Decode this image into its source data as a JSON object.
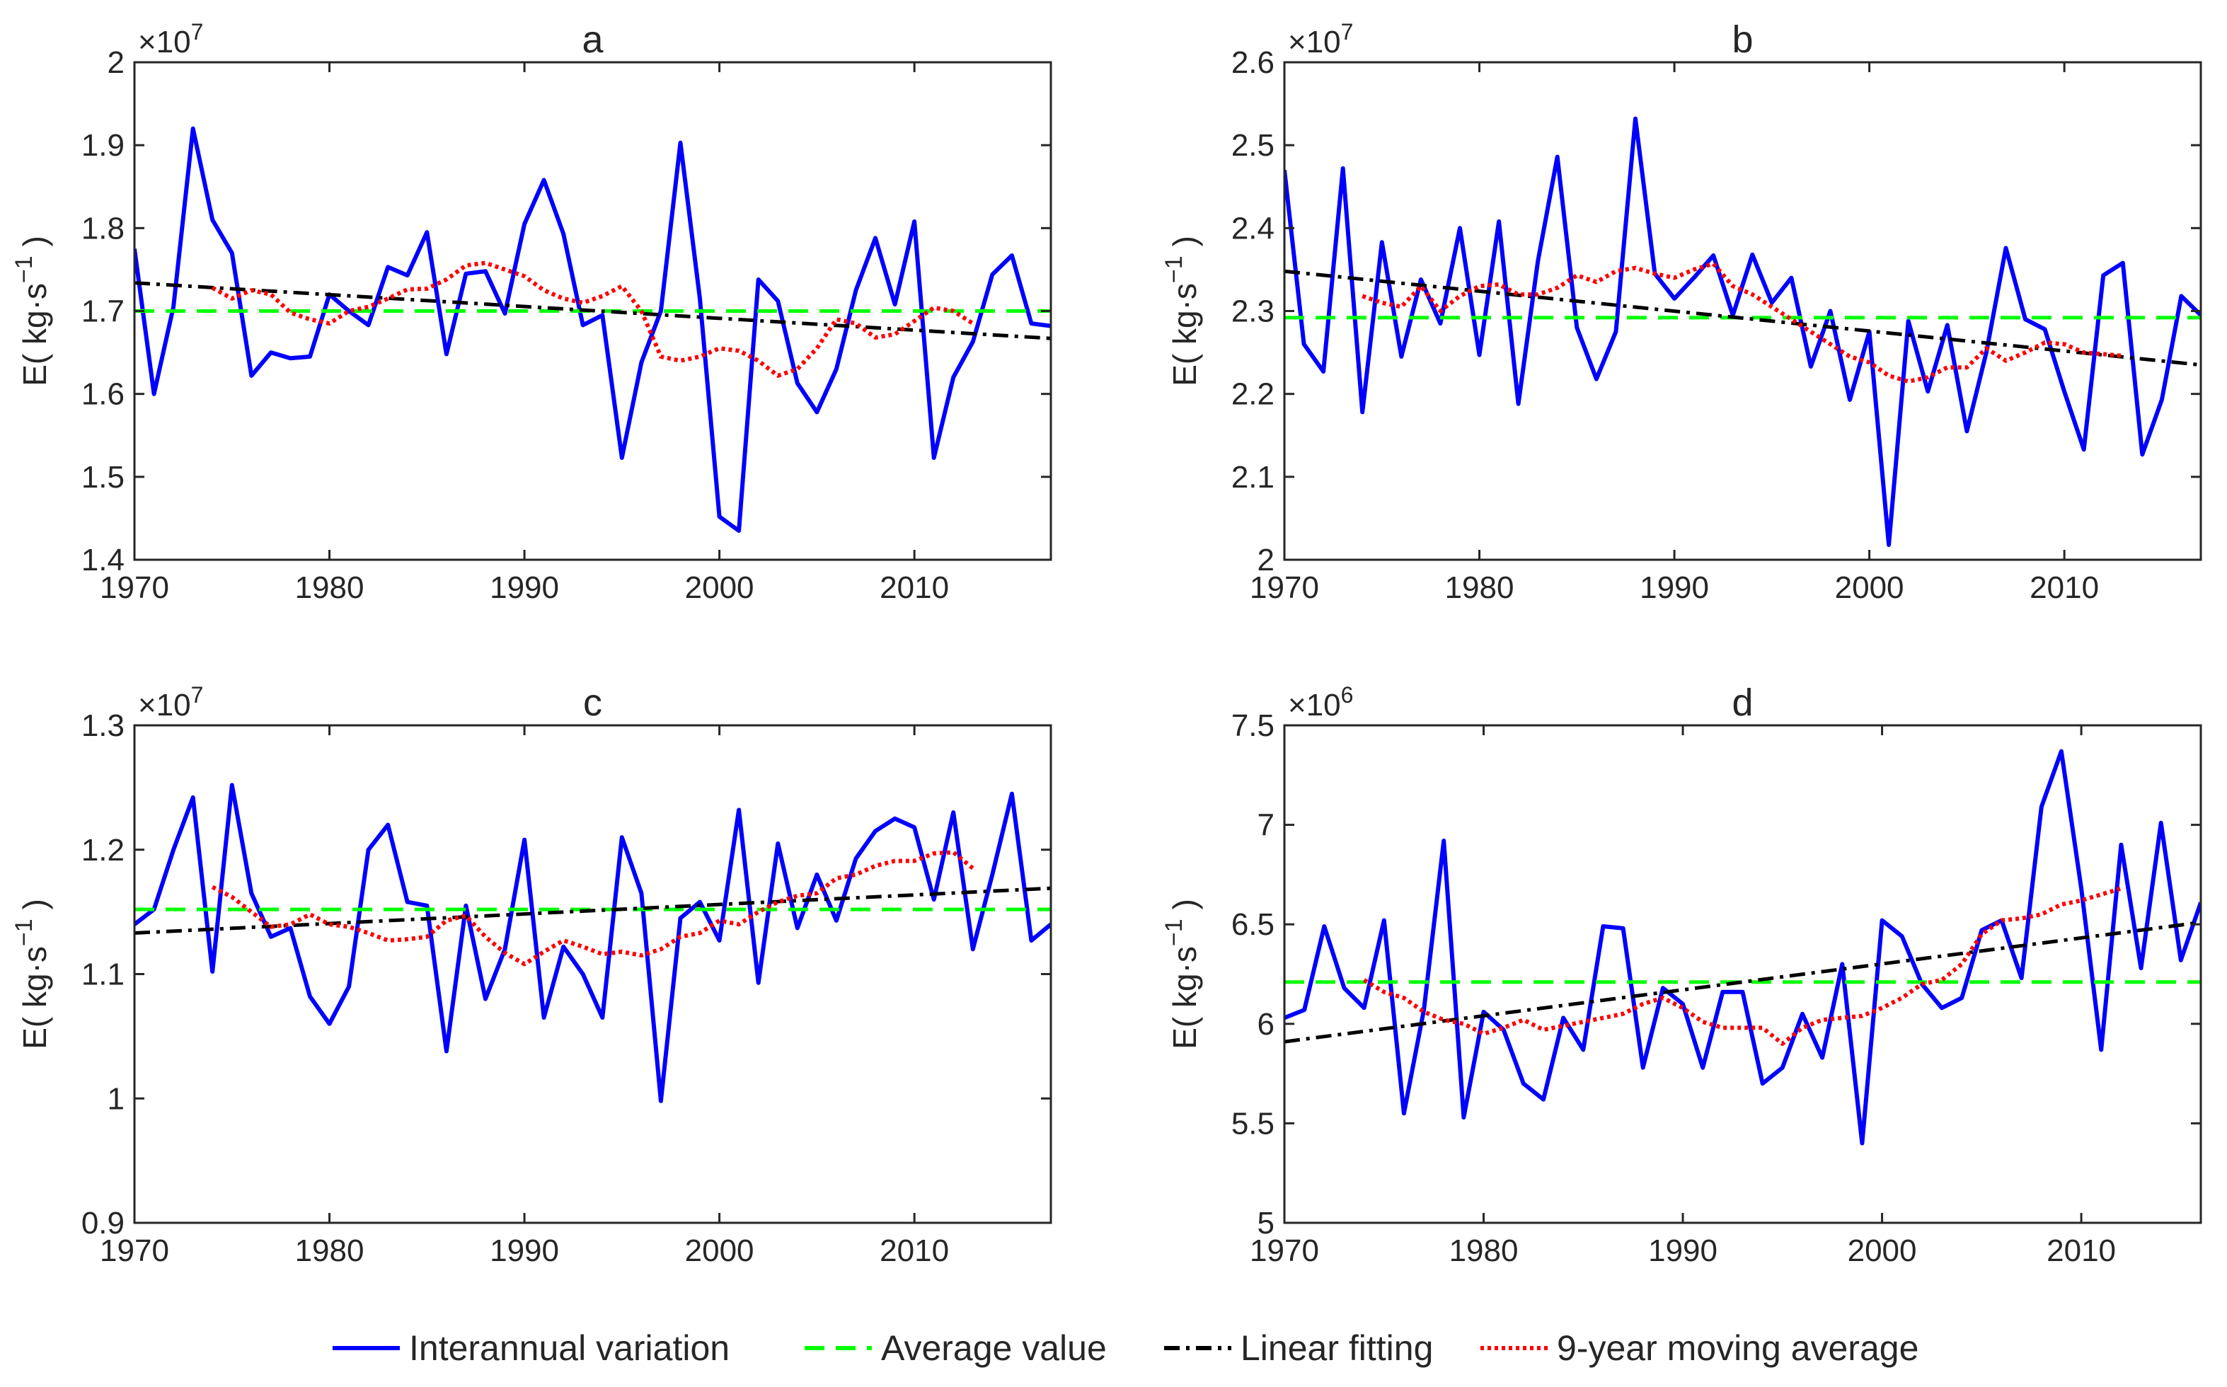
{
  "legend": {
    "interannual": "Interannual variation",
    "average": "Average value",
    "linear": "Linear fitting",
    "moving": "9-year moving average"
  },
  "colors": {
    "interannual": "#0000ff",
    "average": "#00ff00",
    "linear": "#000000",
    "moving": "#ff0000"
  },
  "chart_data": [
    {
      "type": "line",
      "title": "a",
      "exponent_label": "×10",
      "exponent_power": "7",
      "ylabel_prefix": "E( kg·s",
      "ylabel_sup": "−1",
      "ylabel_suffix": " )",
      "xlim": [
        1970,
        2017
      ],
      "ylim": [
        1.4,
        2.0
      ],
      "xticks": [
        1970,
        1980,
        1990,
        2000,
        2010
      ],
      "yticks": [
        1.4,
        1.5,
        1.6,
        1.7,
        1.8,
        1.9,
        2.0
      ],
      "ytick_labels": [
        "1.4",
        "1.5",
        "1.6",
        "1.7",
        "1.8",
        "1.9",
        "2"
      ],
      "years": [
        1970,
        1971,
        1972,
        1973,
        1974,
        1975,
        1976,
        1977,
        1978,
        1979,
        1980,
        1981,
        1982,
        1983,
        1984,
        1985,
        1986,
        1987,
        1988,
        1989,
        1990,
        1991,
        1992,
        1993,
        1994,
        1995,
        1996,
        1997,
        1998,
        1999,
        2000,
        2001,
        2002,
        2003,
        2004,
        2005,
        2006,
        2007,
        2008,
        2009,
        2010,
        2011,
        2012,
        2013,
        2014,
        2015,
        2016,
        2017
      ],
      "series": [
        {
          "name": "Interannual variation",
          "values": [
            1.775,
            1.6,
            1.705,
            1.92,
            1.81,
            1.77,
            1.622,
            1.65,
            1.643,
            1.645,
            1.72,
            1.7,
            1.683,
            1.753,
            1.743,
            1.795,
            1.648,
            1.745,
            1.748,
            1.697,
            1.805,
            1.858,
            1.793,
            1.683,
            1.695,
            1.523,
            1.638,
            1.7,
            1.903,
            1.715,
            1.452,
            1.435,
            1.738,
            1.712,
            1.613,
            1.578,
            1.63,
            1.725,
            1.788,
            1.708,
            1.808,
            1.523,
            1.62,
            1.663,
            1.744,
            1.767,
            1.685,
            1.682
          ]
        },
        {
          "name": "Average value",
          "values": [
            1.7,
            1.7
          ]
        },
        {
          "name": "Linear fitting",
          "values": [
            1.734,
            1.667
          ]
        },
        {
          "name": "9-year moving average",
          "x": [
            1974,
            1975,
            1976,
            1977,
            1978,
            1979,
            1980,
            1981,
            1982,
            1983,
            1984,
            1985,
            1986,
            1987,
            1988,
            1989,
            1990,
            1991,
            1992,
            1993,
            1994,
            1995,
            1996,
            1997,
            1998,
            1999,
            2000,
            2001,
            2002,
            2003,
            2004,
            2005,
            2006,
            2007,
            2008,
            2009,
            2010,
            2011,
            2012,
            2013
          ],
          "values": [
            1.728,
            1.715,
            1.725,
            1.72,
            1.698,
            1.69,
            1.685,
            1.7,
            1.705,
            1.715,
            1.726,
            1.727,
            1.738,
            1.755,
            1.758,
            1.75,
            1.742,
            1.725,
            1.715,
            1.71,
            1.718,
            1.73,
            1.7,
            1.645,
            1.64,
            1.645,
            1.655,
            1.652,
            1.64,
            1.622,
            1.63,
            1.655,
            1.69,
            1.685,
            1.668,
            1.672,
            1.688,
            1.704,
            1.7,
            1.685
          ]
        }
      ]
    },
    {
      "type": "line",
      "title": "b",
      "exponent_label": "×10",
      "exponent_power": "7",
      "ylabel_prefix": "E( kg·s",
      "ylabel_sup": "−1",
      "ylabel_suffix": " )",
      "xlim": [
        1970,
        2017
      ],
      "ylim": [
        2.0,
        2.6
      ],
      "xticks": [
        1970,
        1980,
        1990,
        2000,
        2010
      ],
      "yticks": [
        2.0,
        2.1,
        2.2,
        2.3,
        2.4,
        2.5,
        2.6
      ],
      "ytick_labels": [
        "2",
        "2.1",
        "2.2",
        "2.3",
        "2.4",
        "2.5",
        "2.6"
      ],
      "years": [
        1970,
        1971,
        1972,
        1973,
        1974,
        1975,
        1976,
        1977,
        1978,
        1979,
        1980,
        1981,
        1982,
        1983,
        1984,
        1985,
        1986,
        1987,
        1988,
        1989,
        1990,
        1991,
        1992,
        1993,
        1994,
        1995,
        1996,
        1997,
        1998,
        1999,
        2000,
        2001,
        2002,
        2003,
        2004,
        2005,
        2006,
        2007,
        2008,
        2009,
        2010,
        2011,
        2012,
        2013,
        2014,
        2015,
        2016,
        2017
      ],
      "series": [
        {
          "name": "Interannual variation",
          "values": [
            2.47,
            2.26,
            2.227,
            2.472,
            2.178,
            2.383,
            2.245,
            2.338,
            2.285,
            2.4,
            2.247,
            2.408,
            2.188,
            2.36,
            2.486,
            2.28,
            2.218,
            2.275,
            2.532,
            2.345,
            2.315,
            2.34,
            2.367,
            2.295,
            2.368,
            2.31,
            2.34,
            2.233,
            2.3,
            2.193,
            2.275,
            2.018,
            2.288,
            2.203,
            2.283,
            2.155,
            2.25,
            2.376,
            2.29,
            2.278,
            2.203,
            2.133,
            2.343,
            2.358,
            2.127,
            2.193,
            2.318,
            2.295
          ]
        },
        {
          "name": "Average value",
          "values": [
            2.292,
            2.292
          ]
        },
        {
          "name": "Linear fitting",
          "values": [
            2.348,
            2.235
          ]
        },
        {
          "name": "9-year moving average",
          "x": [
            1974,
            1975,
            1976,
            1977,
            1978,
            1979,
            1980,
            1981,
            1982,
            1983,
            1984,
            1985,
            1986,
            1987,
            1988,
            1989,
            1990,
            1991,
            1992,
            1993,
            1994,
            1995,
            1996,
            1997,
            1998,
            1999,
            2000,
            2001,
            2002,
            2003,
            2004,
            2005,
            2006,
            2007,
            2008,
            2009,
            2010,
            2011,
            2012,
            2013
          ],
          "values": [
            2.318,
            2.31,
            2.305,
            2.33,
            2.3,
            2.318,
            2.33,
            2.332,
            2.32,
            2.32,
            2.328,
            2.343,
            2.335,
            2.348,
            2.352,
            2.345,
            2.34,
            2.35,
            2.357,
            2.33,
            2.32,
            2.305,
            2.29,
            2.275,
            2.26,
            2.245,
            2.238,
            2.222,
            2.215,
            2.22,
            2.232,
            2.232,
            2.255,
            2.24,
            2.25,
            2.262,
            2.26,
            2.25,
            2.248,
            2.246
          ]
        }
      ]
    },
    {
      "type": "line",
      "title": "c",
      "exponent_label": "×10",
      "exponent_power": "7",
      "ylabel_prefix": "E( kg·s",
      "ylabel_sup": "−1",
      "ylabel_suffix": " )",
      "xlim": [
        1970,
        2017
      ],
      "ylim": [
        0.9,
        1.3
      ],
      "xticks": [
        1970,
        1980,
        1990,
        2000,
        2010
      ],
      "yticks": [
        0.9,
        1.0,
        1.1,
        1.2,
        1.3
      ],
      "ytick_labels": [
        "0.9",
        "1",
        "1.1",
        "1.2",
        "1.3"
      ],
      "years": [
        1970,
        1971,
        1972,
        1973,
        1974,
        1975,
        1976,
        1977,
        1978,
        1979,
        1980,
        1981,
        1982,
        1983,
        1984,
        1985,
        1986,
        1987,
        1988,
        1989,
        1990,
        1991,
        1992,
        1993,
        1994,
        1995,
        1996,
        1997,
        1998,
        1999,
        2000,
        2001,
        2002,
        2003,
        2004,
        2005,
        2006,
        2007,
        2008,
        2009,
        2010,
        2011,
        2012,
        2013,
        2014,
        2015,
        2016,
        2017
      ],
      "series": [
        {
          "name": "Interannual variation",
          "values": [
            1.14,
            1.152,
            1.2,
            1.242,
            1.102,
            1.252,
            1.165,
            1.13,
            1.137,
            1.082,
            1.06,
            1.09,
            1.2,
            1.22,
            1.158,
            1.155,
            1.038,
            1.155,
            1.08,
            1.12,
            1.208,
            1.065,
            1.122,
            1.1,
            1.065,
            1.21,
            1.165,
            0.998,
            1.145,
            1.158,
            1.127,
            1.232,
            1.093,
            1.205,
            1.137,
            1.18,
            1.143,
            1.193,
            1.215,
            1.225,
            1.218,
            1.16,
            1.23,
            1.12,
            1.18,
            1.245,
            1.127,
            1.14
          ]
        },
        {
          "name": "Average value",
          "values": [
            1.152,
            1.152
          ]
        },
        {
          "name": "Linear fitting",
          "values": [
            1.133,
            1.169
          ]
        },
        {
          "name": "9-year moving average",
          "x": [
            1974,
            1975,
            1976,
            1977,
            1978,
            1979,
            1980,
            1981,
            1982,
            1983,
            1984,
            1985,
            1986,
            1987,
            1988,
            1989,
            1990,
            1991,
            1992,
            1993,
            1994,
            1995,
            1996,
            1997,
            1998,
            1999,
            2000,
            2001,
            2002,
            2003,
            2004,
            2005,
            2006,
            2007,
            2008,
            2009,
            2010,
            2011,
            2012,
            2013
          ],
          "values": [
            1.17,
            1.162,
            1.15,
            1.138,
            1.14,
            1.148,
            1.14,
            1.138,
            1.133,
            1.127,
            1.128,
            1.13,
            1.143,
            1.147,
            1.13,
            1.117,
            1.108,
            1.118,
            1.127,
            1.122,
            1.116,
            1.118,
            1.115,
            1.12,
            1.13,
            1.133,
            1.143,
            1.14,
            1.15,
            1.158,
            1.163,
            1.165,
            1.177,
            1.18,
            1.187,
            1.191,
            1.191,
            1.197,
            1.198,
            1.185
          ]
        }
      ]
    },
    {
      "type": "line",
      "title": "d",
      "exponent_label": "×10",
      "exponent_power": "6",
      "ylabel_prefix": "E( kg·s",
      "ylabel_sup": "−1",
      "ylabel_suffix": " )",
      "xlim": [
        1970,
        2016
      ],
      "ylim": [
        5.0,
        7.5
      ],
      "xticks": [
        1970,
        1980,
        1990,
        2000,
        2010
      ],
      "yticks": [
        5.0,
        5.5,
        6.0,
        6.5,
        7.0,
        7.5
      ],
      "ytick_labels": [
        "5",
        "5.5",
        "6",
        "6.5",
        "7",
        "7.5"
      ],
      "years": [
        1970,
        1971,
        1972,
        1973,
        1974,
        1975,
        1976,
        1977,
        1978,
        1979,
        1980,
        1981,
        1982,
        1983,
        1984,
        1985,
        1986,
        1987,
        1988,
        1989,
        1990,
        1991,
        1992,
        1993,
        1994,
        1995,
        1996,
        1997,
        1998,
        1999,
        2000,
        2001,
        2002,
        2003,
        2004,
        2005,
        2006,
        2007,
        2008,
        2009,
        2010,
        2011,
        2012,
        2013,
        2014,
        2015,
        2016
      ],
      "series": [
        {
          "name": "Interannual variation",
          "values": [
            6.03,
            6.07,
            6.49,
            6.18,
            6.08,
            6.52,
            5.55,
            6.07,
            6.92,
            5.53,
            6.06,
            5.97,
            5.7,
            5.62,
            6.03,
            5.87,
            6.49,
            6.48,
            5.78,
            6.18,
            6.1,
            5.78,
            6.16,
            6.16,
            5.7,
            5.78,
            6.05,
            5.83,
            6.3,
            5.4,
            6.52,
            6.44,
            6.2,
            6.08,
            6.13,
            6.47,
            6.52,
            6.23,
            7.09,
            7.37,
            6.68,
            5.87,
            6.9,
            6.28,
            7.01,
            6.32,
            6.61
          ]
        },
        {
          "name": "Average value",
          "values": [
            6.21,
            6.21
          ]
        },
        {
          "name": "Linear fitting",
          "values": [
            5.91,
            6.51
          ]
        },
        {
          "name": "9-year moving average",
          "x": [
            1974,
            1975,
            1976,
            1977,
            1978,
            1979,
            1980,
            1981,
            1982,
            1983,
            1984,
            1985,
            1986,
            1987,
            1988,
            1989,
            1990,
            1991,
            1992,
            1993,
            1994,
            1995,
            1996,
            1997,
            1998,
            1999,
            2000,
            2001,
            2002,
            2003,
            2004,
            2005,
            2006,
            2007,
            2008,
            2009,
            2010,
            2011,
            2012
          ],
          "values": [
            6.22,
            6.16,
            6.13,
            6.06,
            6.02,
            6.0,
            5.95,
            5.98,
            6.02,
            5.97,
            5.99,
            6.01,
            6.03,
            6.05,
            6.1,
            6.13,
            6.08,
            6.01,
            5.98,
            5.98,
            5.98,
            5.9,
            5.98,
            6.02,
            6.03,
            6.04,
            6.08,
            6.13,
            6.2,
            6.22,
            6.3,
            6.45,
            6.52,
            6.53,
            6.55,
            6.6,
            6.62,
            6.65,
            6.68
          ]
        }
      ]
    }
  ]
}
